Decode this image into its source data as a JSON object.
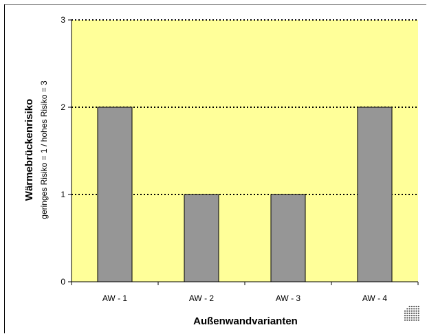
{
  "chart_data": {
    "type": "bar",
    "categories": [
      "AW - 1",
      "AW - 2",
      "AW - 3",
      "AW - 4"
    ],
    "values": [
      2,
      1,
      1,
      2
    ],
    "ylim": [
      0,
      3
    ],
    "yticks": [
      "0",
      "1",
      "2",
      "3"
    ],
    "xlabel": "Außenwandvarianten",
    "ylabel": "Wärmebrückenrisiko",
    "ylabel_sub": "geringes Risiko = 1 / hohes Risiko = 3",
    "grid": true,
    "grid_style": "dotted",
    "legend": "none",
    "colors": {
      "plot_background": "#ffff99",
      "bar_fill": "#969696",
      "bar_stroke": "#000000",
      "axis": "#000000",
      "grid": "#000000"
    }
  },
  "logo": {
    "name": "dot-grid-logo"
  }
}
